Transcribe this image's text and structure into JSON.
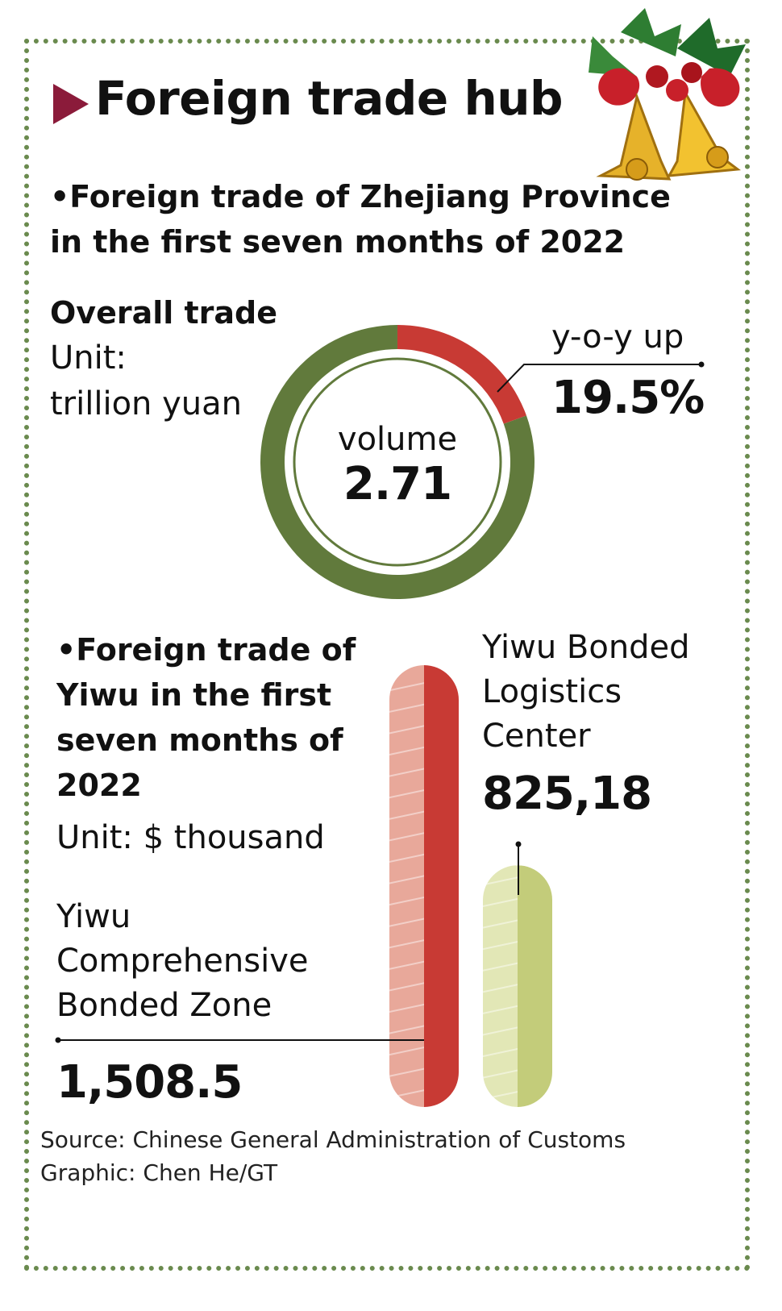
{
  "title": "Foreign trade hub",
  "decoration": {
    "icon": "christmas-bells-icon",
    "colors": [
      "#f2c230",
      "#c8202a",
      "#2e7d32"
    ]
  },
  "colors": {
    "accent": "#8b1b3a",
    "green": "#617a3c",
    "red": "#c83a34",
    "red_light": "#e8a89a",
    "lime": "#c3cc7a",
    "lime_light": "#e2e7b6",
    "border": "#6a8a4e"
  },
  "section1": {
    "heading_line1": "•Foreign trade of Zhejiang Province",
    "heading_line2": "in the first seven months of 2022",
    "overall_label": "Overall trade",
    "unit_line1": "Unit:",
    "unit_line2": "trillion yuan",
    "center_label": "volume",
    "center_value": "2.71",
    "yoy_label": "y-o-y up",
    "yoy_value": "19.5%"
  },
  "section2": {
    "heading_lines": [
      "•Foreign trade of",
      "Yiwu in the first",
      "seven months of",
      "2022"
    ],
    "unit": "Unit: $ thousand",
    "zone_label_lines": [
      "Yiwu",
      "Comprehensive",
      "Bonded Zone"
    ],
    "zone_value": "1,508.5",
    "center_label_lines": [
      "Yiwu Bonded",
      "Logistics",
      "Center"
    ],
    "center_value": "825,18"
  },
  "chart_data": [
    {
      "type": "pie",
      "title": "Overall trade",
      "unit": "trillion yuan",
      "total": 2.71,
      "slices": [
        {
          "label": "y-o-y up",
          "percent": 19.5
        },
        {
          "label": "volume",
          "percent": 80.5
        }
      ]
    },
    {
      "type": "bar",
      "unit": "$ thousand",
      "categories": [
        "Yiwu Comprehensive Bonded Zone",
        "Yiwu Bonded Logistics Center"
      ],
      "values": [
        1508.5,
        825.18
      ]
    }
  ],
  "footer": {
    "source": "Source: Chinese General Administration of Customs",
    "graphic": "Graphic: Chen He/GT"
  }
}
